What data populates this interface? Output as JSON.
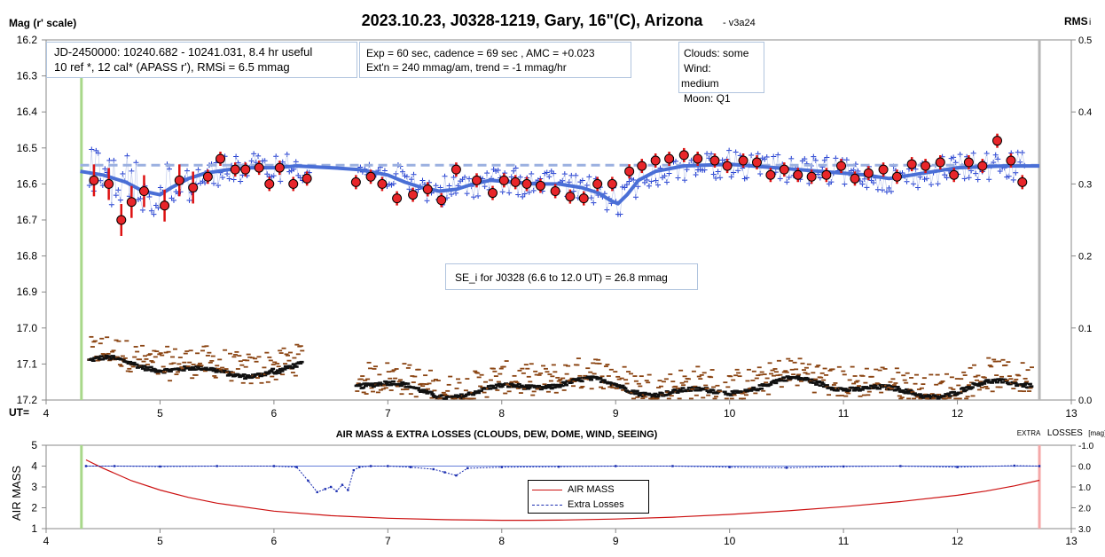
{
  "chart_data": [
    {
      "type": "scatter",
      "title": "2023.10.23, J0328-1219, Gary, 16\"(C), Arizona",
      "subtitle": "- v3a24",
      "ylabel_left": "Mag (r' scale)",
      "ylabel_right": "RMS",
      "ylabel_right_sub": "i",
      "xlabel": "UT=",
      "xlim": [
        4,
        13
      ],
      "ylim_left": [
        17.2,
        16.2
      ],
      "ylim_right": [
        0.0,
        0.5
      ],
      "x_ticks": [
        4,
        5,
        6,
        7,
        8,
        9,
        10,
        11,
        12,
        13
      ],
      "y_ticks_left": [
        "16.2",
        "16.3",
        "16.4",
        "16.5",
        "16.6",
        "16.7",
        "16.8",
        "16.9",
        "17.0",
        "17.1",
        "17.2"
      ],
      "y_ticks_right": [
        "0.5",
        "0.4",
        "0.3",
        "0.2",
        "0.1",
        "0.0"
      ],
      "grid": false,
      "start_marker_x": 4.31,
      "end_marker_x": 12.72,
      "annotations": {
        "info_line1": "JD-2450000: 10240.682 - 10241.031, 8.4 hr useful",
        "info_line2": "10 ref *, 12 cal*  (APASS r'), RMSi = 6.5 mmag",
        "exp_line1": "Exp = 60 sec, cadence = 69 sec , AMC = +0.023",
        "exp_line2": "Ext'n = 240 mmag/am, trend = -1 mmag/hr",
        "clouds_line1": "Clouds: some",
        "clouds_line2": "Wind:",
        "clouds_line3": "medium",
        "clouds_line4": "Moon:  Q1",
        "se_text": "SE_i for J0328 (6.6 to 12.0 UT) = 26.8 mmag"
      },
      "series": [
        {
          "name": "model-fit",
          "color": "#4a6fd6",
          "x": [
            4.3,
            4.5,
            4.7,
            4.85,
            5.0,
            5.1,
            5.25,
            5.4,
            5.6,
            5.8,
            6.0,
            6.2,
            6.5,
            6.75,
            7.0,
            7.15,
            7.3,
            7.45,
            7.6,
            7.75,
            7.9,
            8.1,
            8.3,
            8.5,
            8.7,
            8.85,
            8.95,
            9.02,
            9.1,
            9.2,
            9.35,
            9.6,
            10.0,
            10.4,
            10.8,
            11.2,
            11.4,
            11.6,
            12.0,
            12.4,
            12.72
          ],
          "values": [
            16.565,
            16.575,
            16.595,
            16.62,
            16.63,
            16.61,
            16.585,
            16.57,
            16.56,
            16.555,
            16.555,
            16.55,
            16.555,
            16.56,
            16.575,
            16.595,
            16.61,
            16.62,
            16.615,
            16.6,
            16.59,
            16.595,
            16.6,
            16.6,
            16.61,
            16.625,
            16.645,
            16.655,
            16.63,
            16.59,
            16.565,
            16.55,
            16.545,
            16.555,
            16.565,
            16.575,
            16.585,
            16.575,
            16.555,
            16.55,
            16.55
          ]
        },
        {
          "name": "reference-level",
          "color": "#9bb0e0",
          "x": [
            4.3,
            12.72
          ],
          "values": [
            16.548,
            16.548
          ]
        },
        {
          "name": "binned-averages",
          "color": "#e8262a",
          "x": [
            4.42,
            4.55,
            4.66,
            4.75,
            4.86,
            5.04,
            5.17,
            5.29,
            5.42,
            5.53,
            5.66,
            5.75,
            5.87,
            5.96,
            6.05,
            6.17,
            6.29,
            6.72,
            6.85,
            6.95,
            7.08,
            7.22,
            7.35,
            7.47,
            7.6,
            7.78,
            7.92,
            8.02,
            8.12,
            8.22,
            8.34,
            8.47,
            8.6,
            8.72,
            8.84,
            8.97,
            9.12,
            9.23,
            9.35,
            9.47,
            9.6,
            9.72,
            9.87,
            9.98,
            10.12,
            10.24,
            10.36,
            10.48,
            10.6,
            10.72,
            10.85,
            10.98,
            11.1,
            11.22,
            11.35,
            11.47,
            11.6,
            11.72,
            11.85,
            11.97,
            12.1,
            12.22,
            12.35,
            12.47,
            12.57
          ],
          "values": [
            16.59,
            16.6,
            16.7,
            16.65,
            16.62,
            16.66,
            16.59,
            16.61,
            16.58,
            16.53,
            16.56,
            16.56,
            16.555,
            16.6,
            16.555,
            16.6,
            16.585,
            16.595,
            16.58,
            16.6,
            16.64,
            16.63,
            16.615,
            16.645,
            16.56,
            16.59,
            16.625,
            16.59,
            16.595,
            16.6,
            16.605,
            16.62,
            16.635,
            16.64,
            16.6,
            16.6,
            16.565,
            16.55,
            16.535,
            16.53,
            16.52,
            16.53,
            16.535,
            16.55,
            16.535,
            16.54,
            16.575,
            16.56,
            16.575,
            16.58,
            16.575,
            16.55,
            16.585,
            16.57,
            16.56,
            16.58,
            16.545,
            16.55,
            16.54,
            16.575,
            16.54,
            16.55,
            16.48,
            16.535,
            16.595
          ]
        }
      ]
    },
    {
      "type": "line",
      "title": "AIR MASS & EXTRA LOSSES (CLOUDS, DEW, DOME, WIND, SEEING)",
      "ylabel": "AIR MASS",
      "ylabel_right": "EXTRA LOSSES [mag]",
      "ylabel_right_small": "EXTRA",
      "ylabel_right_big": "LOSSES",
      "ylabel_right_unit": "[mag]",
      "xlim": [
        4,
        13
      ],
      "ylim": [
        1,
        5
      ],
      "ylim_right": [
        -1.0,
        3.0
      ],
      "x_ticks": [
        4,
        5,
        6,
        7,
        8,
        9,
        10,
        11,
        12,
        13
      ],
      "y_ticks": [
        "5",
        "4",
        "3",
        "2",
        "1"
      ],
      "y_ticks_right": [
        "-1.0",
        "0.0",
        "1.0",
        "2.0",
        "3.0"
      ],
      "start_marker_x": 4.31,
      "end_marker_x": 12.72,
      "legend": {
        "airmass": "AIR MASS",
        "losses": "Extra Losses"
      },
      "series": [
        {
          "name": "AIR MASS",
          "color": "#cc1111",
          "x": [
            4.35,
            4.5,
            4.75,
            5.0,
            5.25,
            5.5,
            6.0,
            6.5,
            7.0,
            7.5,
            8.0,
            8.25,
            8.5,
            9.0,
            9.5,
            10.0,
            10.5,
            11.0,
            11.5,
            12.0,
            12.25,
            12.5,
            12.72
          ],
          "values": [
            4.3,
            3.9,
            3.3,
            2.85,
            2.5,
            2.22,
            1.84,
            1.62,
            1.5,
            1.43,
            1.4,
            1.4,
            1.41,
            1.46,
            1.55,
            1.68,
            1.85,
            2.05,
            2.3,
            2.6,
            2.8,
            3.05,
            3.32
          ]
        },
        {
          "name": "Extra Losses",
          "color": "#1a2db0",
          "x": [
            4.35,
            4.6,
            5.0,
            5.5,
            6.0,
            6.2,
            6.3,
            6.38,
            6.45,
            6.5,
            6.55,
            6.6,
            6.65,
            6.7,
            6.75,
            6.85,
            7.0,
            7.2,
            7.4,
            7.5,
            7.6,
            7.7,
            8.0,
            8.5,
            9.0,
            9.5,
            10.0,
            10.5,
            11.0,
            11.5,
            12.0,
            12.5,
            12.72
          ],
          "values": [
            0.0,
            0.0,
            0.02,
            0.0,
            0.0,
            0.05,
            0.7,
            1.25,
            1.1,
            1.0,
            1.2,
            0.9,
            1.15,
            0.2,
            0.05,
            0.0,
            0.0,
            0.05,
            0.15,
            0.3,
            0.45,
            0.1,
            0.05,
            0.03,
            0.0,
            0.0,
            0.05,
            0.08,
            0.02,
            0.0,
            0.05,
            -0.02,
            0.0
          ]
        }
      ]
    }
  ]
}
